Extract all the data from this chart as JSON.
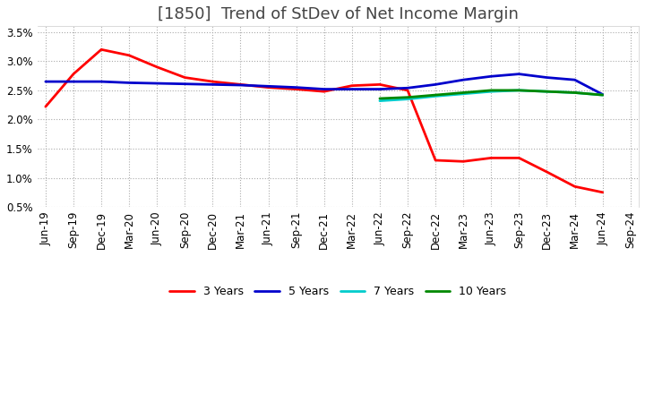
{
  "title": "[1850]  Trend of StDev of Net Income Margin",
  "ylim": [
    0.005,
    0.036
  ],
  "yticks": [
    0.005,
    0.01,
    0.015,
    0.02,
    0.025,
    0.03,
    0.035
  ],
  "ytick_labels": [
    "0.5%",
    "1.0%",
    "1.5%",
    "2.0%",
    "2.5%",
    "3.0%",
    "3.5%"
  ],
  "background_color": "#ffffff",
  "grid_color": "#aaaaaa",
  "series": {
    "3 Years": {
      "color": "#ff0000",
      "dates": [
        "Jun-19",
        "Sep-19",
        "Dec-19",
        "Mar-20",
        "Jun-20",
        "Sep-20",
        "Dec-20",
        "Mar-21",
        "Jun-21",
        "Sep-21",
        "Dec-21",
        "Mar-22",
        "Jun-22",
        "Sep-22",
        "Dec-22",
        "Mar-23",
        "Jun-23",
        "Sep-23",
        "Dec-23",
        "Mar-24",
        "Jun-24"
      ],
      "values": [
        0.0222,
        0.0278,
        0.032,
        0.031,
        0.029,
        0.0272,
        0.0265,
        0.026,
        0.0255,
        0.0252,
        0.0248,
        0.0258,
        0.026,
        0.025,
        0.013,
        0.0128,
        0.0134,
        0.0134,
        0.011,
        0.0085,
        0.0075
      ]
    },
    "5 Years": {
      "color": "#0000cc",
      "dates": [
        "Jun-19",
        "Sep-19",
        "Dec-19",
        "Mar-20",
        "Jun-20",
        "Sep-20",
        "Dec-20",
        "Mar-21",
        "Jun-21",
        "Sep-21",
        "Dec-21",
        "Mar-22",
        "Jun-22",
        "Sep-22",
        "Dec-22",
        "Mar-23",
        "Jun-23",
        "Sep-23",
        "Dec-23",
        "Mar-24",
        "Jun-24"
      ],
      "values": [
        0.0265,
        0.0265,
        0.0265,
        0.0263,
        0.0262,
        0.0261,
        0.026,
        0.0259,
        0.0257,
        0.0255,
        0.0252,
        0.0252,
        0.0252,
        0.0254,
        0.026,
        0.0268,
        0.0274,
        0.0278,
        0.0272,
        0.0268,
        0.0243
      ]
    },
    "7 Years": {
      "color": "#00cccc",
      "dates": [
        "Jun-22",
        "Sep-22",
        "Dec-22",
        "Mar-23",
        "Jun-23",
        "Sep-23",
        "Dec-23",
        "Mar-24",
        "Jun-24"
      ],
      "values": [
        0.0232,
        0.0235,
        0.024,
        0.0244,
        0.0248,
        0.025,
        0.0248,
        0.0246,
        0.0242
      ]
    },
    "10 Years": {
      "color": "#008800",
      "dates": [
        "Jun-22",
        "Sep-22",
        "Dec-22",
        "Mar-23",
        "Jun-23",
        "Sep-23",
        "Dec-23",
        "Mar-24",
        "Jun-24"
      ],
      "values": [
        0.0236,
        0.0238,
        0.0242,
        0.0246,
        0.025,
        0.025,
        0.0248,
        0.0246,
        0.0242
      ]
    }
  },
  "all_dates": [
    "Jun-19",
    "Sep-19",
    "Dec-19",
    "Mar-20",
    "Jun-20",
    "Sep-20",
    "Dec-20",
    "Mar-21",
    "Jun-21",
    "Sep-21",
    "Dec-21",
    "Mar-22",
    "Jun-22",
    "Sep-22",
    "Dec-22",
    "Mar-23",
    "Jun-23",
    "Sep-23",
    "Dec-23",
    "Mar-24",
    "Jun-24",
    "Sep-24"
  ],
  "title_fontsize": 13,
  "title_color": "#444444",
  "tick_fontsize": 8.5,
  "legend_fontsize": 9
}
